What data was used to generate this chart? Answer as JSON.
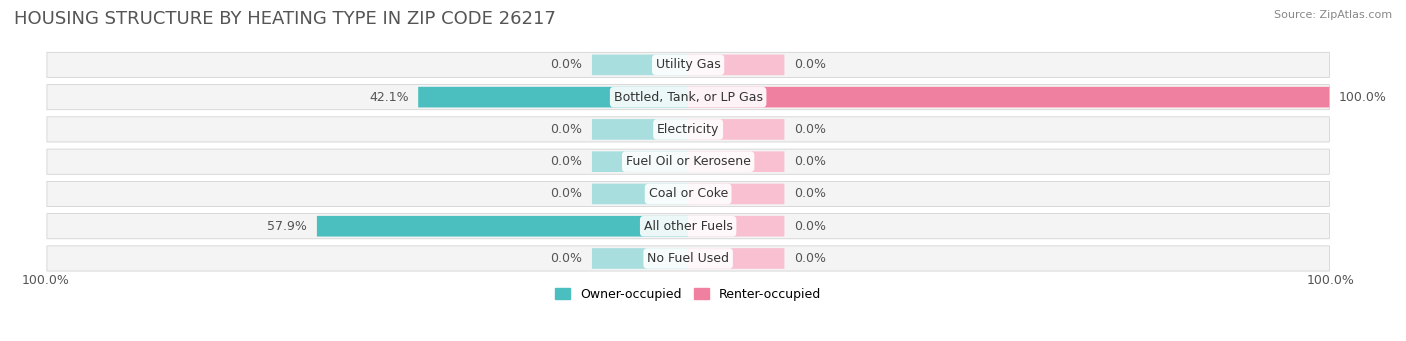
{
  "title": "HOUSING STRUCTURE BY HEATING TYPE IN ZIP CODE 26217",
  "source": "Source: ZipAtlas.com",
  "categories": [
    "Utility Gas",
    "Bottled, Tank, or LP Gas",
    "Electricity",
    "Fuel Oil or Kerosene",
    "Coal or Coke",
    "All other Fuels",
    "No Fuel Used"
  ],
  "owner_values": [
    0.0,
    42.1,
    0.0,
    0.0,
    0.0,
    57.9,
    0.0
  ],
  "renter_values": [
    0.0,
    100.0,
    0.0,
    0.0,
    0.0,
    0.0,
    0.0
  ],
  "owner_color": "#4BBFBF",
  "renter_color": "#F080A0",
  "owner_color_light": "#A8DEDE",
  "renter_color_light": "#F8C0D0",
  "bg_color": "#F0F0F0",
  "bar_bg_color": "#E8E8E8",
  "title_fontsize": 13,
  "label_fontsize": 9,
  "axis_label_fontsize": 9,
  "xlim": [
    -100,
    100
  ],
  "x_axis_left_label": "100.0%",
  "x_axis_right_label": "100.0%"
}
